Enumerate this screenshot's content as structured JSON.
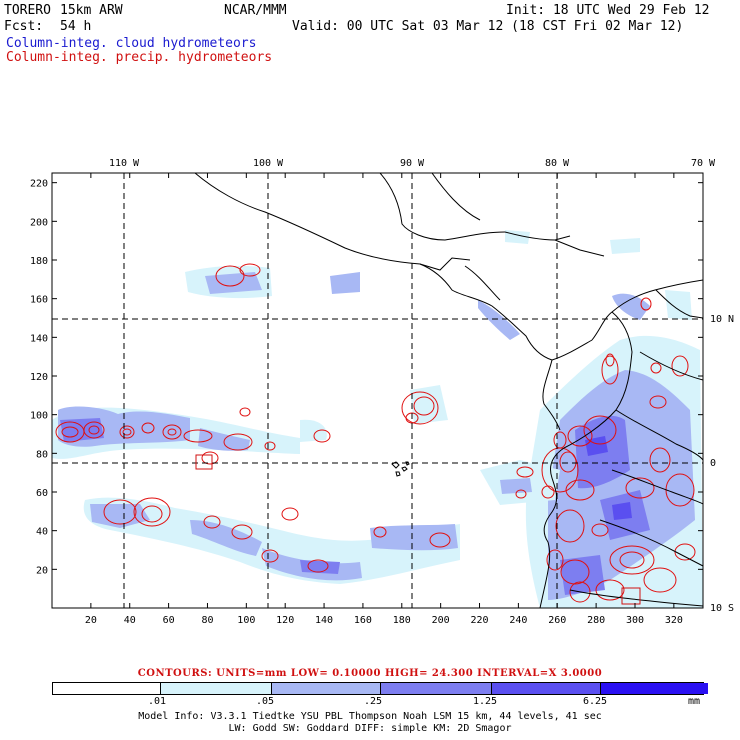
{
  "header": {
    "model": "TORERO",
    "resolution": "15km ARW",
    "org": "NCAR/MMM",
    "init": "Init: 18 UTC Wed 29 Feb 12",
    "fcst_label": "Fcst:",
    "fcst_value": "54 h",
    "valid": "Valid: 00 UTC Sat 03 Mar 12 (18 CST Fri 02 Mar 12)",
    "field1": "Column-integ. cloud hydrometeors",
    "field2": "Column-integ. precip. hydrometeors"
  },
  "colors": {
    "cloud_label": "#1a1ad0",
    "precip_label": "#d01010",
    "contour": "#e01010",
    "coast": "#000000"
  },
  "map": {
    "lon_labels": [
      "110 W",
      "100 W",
      "90 W",
      "80 W",
      "70 W"
    ],
    "lat_labels": [
      "10 N",
      "0",
      "10 S"
    ],
    "x_ticks": [
      "20",
      "40",
      "60",
      "80",
      "100",
      "120",
      "140",
      "160",
      "180",
      "200",
      "220",
      "240",
      "260",
      "280",
      "300",
      "320"
    ],
    "y_ticks": [
      "20",
      "40",
      "60",
      "80",
      "100",
      "120",
      "140",
      "160",
      "180",
      "200",
      "220"
    ],
    "x_range": [
      0,
      335
    ],
    "y_range": [
      0,
      225
    ]
  },
  "contours_info": {
    "text": "CONTOURS:  UNITS=mm  LOW= 0.10000      HIGH=  24.300      INTERVAL=X  3.0000"
  },
  "legend": {
    "labels": [
      ".01",
      ".05",
      ".25",
      "1.25",
      "6.25",
      "mm"
    ],
    "colors": [
      "#ffffff",
      "#d7f3fb",
      "#a8b8f4",
      "#7d7ef0",
      "#5a4ff0",
      "#2a10f2"
    ]
  },
  "footer": {
    "line1": "Model Info: V3.3.1    Tiedtke YSU PBL   Thompson     Noah LSM  15 km,    44 levels,    41 sec",
    "line2": "LW: Godd SW: Goddard DIFF: simple KM: 2D Smagor"
  }
}
